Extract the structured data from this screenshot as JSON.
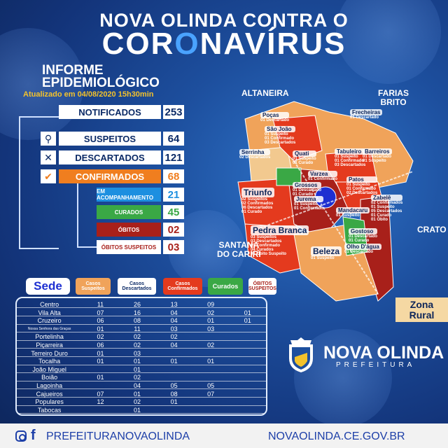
{
  "header": {
    "line1": "NOVA OLINDA CONTRA O",
    "line2_part1": "COR",
    "line2_o": "O",
    "line2_part2": "NAVÍRUS"
  },
  "informe": {
    "line1": "INFORME",
    "line2": "EPIDEMIOLÓGICO",
    "updated": "Atualizado em 04/08/2020 15h30min"
  },
  "stats": {
    "notificados": {
      "label": "NOTIFICADOS",
      "value": "253"
    },
    "suspeitos": {
      "label": "SUSPEITOS",
      "value": "64"
    },
    "descartados": {
      "label": "DESCARTADOS",
      "value": "121"
    },
    "confirmados": {
      "label": "CONFIRMADOS",
      "value": "68"
    },
    "acompanhamento": {
      "label": "EM ACOMPANHAMENTO",
      "value": "21"
    },
    "curados": {
      "label": "CURADOS",
      "value": "45"
    },
    "obitos": {
      "label": "ÓBITOS",
      "value": "02"
    },
    "obitos_suspeitos": {
      "label": "ÓBITOS SUSPEITOS",
      "value": "03"
    }
  },
  "colors": {
    "suspeitos": "#f0a35a",
    "descartados": "#ffffff",
    "confirmados": "#e43a1e",
    "curados": "#3aa845",
    "obitos": "#a8201a",
    "acompanhamento": "#1d8fe0",
    "confirmados_box": "#f07e1f"
  },
  "map": {
    "neighbors": {
      "altaneira": "ALTANEIRA",
      "farias_brito_1": "FARIAS",
      "farias_brito_2": "BRITO",
      "crato": "CRATO",
      "santana_1": "SANTANA",
      "santana_2": "DO CARIRI"
    },
    "zona_rural_1": "Zona",
    "zona_rural_2": "Rural",
    "localities": [
      {
        "name": "Poças",
        "notes": [
          "01 Descartado"
        ]
      },
      {
        "name": "São João",
        "notes": [
          "01 Suspeito",
          "01 Confirmado",
          "03 Descartados"
        ]
      },
      {
        "name": "Serrinha",
        "notes": [
          "02 Descartados"
        ]
      },
      {
        "name": "Quati",
        "notes": [
          "01 Suspeito",
          "01 Curado"
        ]
      },
      {
        "name": "Frecheiras",
        "notes": [
          "01 Descartado"
        ]
      },
      {
        "name": "Tabuleiro",
        "notes": [
          "01 Suspeito",
          "01 Confirmado",
          "03 Descartados"
        ]
      },
      {
        "name": "Barreiros",
        "notes": [
          "01 Descartado",
          "01 Suspeito"
        ]
      },
      {
        "name": "Grossos",
        "notes": [
          "01 Descartado",
          "01 Curado"
        ]
      },
      {
        "name": "Varzea",
        "notes": [
          "01 Confirmado"
        ]
      },
      {
        "name": "Patos",
        "notes": [
          "01 Suspeito",
          "01 Confirmado",
          "02 Descartados"
        ]
      },
      {
        "name": "Triunfo",
        "notes": [
          "02 Suspeitos",
          "02 Confirmados",
          "06 Descartados",
          "01 Curado"
        ]
      },
      {
        "name": "Jurema",
        "notes": [
          "01 Suspeito",
          "01 Confirmado"
        ]
      },
      {
        "name": "Zabelê",
        "notes": [
          "02 Confirmados",
          "01 Suspeito",
          "05 Descartados",
          "01 Curado",
          "01 Óbito"
        ]
      },
      {
        "name": "Mandacaru",
        "notes": [
          "01 Suspeito"
        ]
      },
      {
        "name": "Pedra Branca",
        "notes": [
          "03 Suspeitos",
          "03 Descartados",
          "09 Confirmado",
          "04 Curados",
          "01 Óbito Suspeito"
        ]
      },
      {
        "name": "Gostoso",
        "notes": [
          "01 Descartado",
          "01 Curado"
        ]
      },
      {
        "name": "Olho D'água",
        "notes": [
          "01 Descartado"
        ]
      },
      {
        "name": "Beleza",
        "notes": [
          "01 Suspeito"
        ]
      }
    ]
  },
  "legend": {
    "sede": "Sede",
    "suspeitos_1": "Casos",
    "suspeitos_2": "Suspeitos",
    "descartados_1": "Casos",
    "descartados_2": "Descartados",
    "confirmados_1": "Casos",
    "confirmados_2": "Confirmados",
    "curados": "Curados",
    "obitos_1": "ÓBITOS",
    "obitos_2": "SUSPEITOS"
  },
  "table": {
    "rows": [
      {
        "name": "Centro",
        "suspeitos": "11",
        "descartados": "26",
        "confirmados": "13",
        "curados": "09",
        "obitos": ""
      },
      {
        "name": "Vila Alta",
        "suspeitos": "07",
        "descartados": "16",
        "confirmados": "04",
        "curados": "02",
        "obitos": "01"
      },
      {
        "name": "Cruzeiro",
        "suspeitos": "06",
        "descartados": "08",
        "confirmados": "04",
        "curados": "01",
        "obitos": "01"
      },
      {
        "name": "Nossa Senhora das Graças",
        "suspeitos": "01",
        "descartados": "11",
        "confirmados": "03",
        "curados": "03",
        "obitos": ""
      },
      {
        "name": "Portelinha",
        "suspeitos": "02",
        "descartados": "02",
        "confirmados": "02",
        "curados": "",
        "obitos": ""
      },
      {
        "name": "Piçarreira",
        "suspeitos": "06",
        "descartados": "02",
        "confirmados": "04",
        "curados": "02",
        "obitos": ""
      },
      {
        "name": "Terreiro Duro",
        "suspeitos": "01",
        "descartados": "03",
        "confirmados": "",
        "curados": "",
        "obitos": ""
      },
      {
        "name": "Tocalha",
        "suspeitos": "01",
        "descartados": "01",
        "confirmados": "01",
        "curados": "01",
        "obitos": ""
      },
      {
        "name": "João Miguel",
        "suspeitos": "",
        "descartados": "01",
        "confirmados": "",
        "curados": "",
        "obitos": ""
      },
      {
        "name": "Boião",
        "suspeitos": "01",
        "descartados": "02",
        "confirmados": "",
        "curados": "",
        "obitos": ""
      },
      {
        "name": "Lagoinha",
        "suspeitos": "",
        "descartados": "04",
        "confirmados": "05",
        "curados": "05",
        "obitos": ""
      },
      {
        "name": "Cajueiros",
        "suspeitos": "07",
        "descartados": "01",
        "confirmados": "08",
        "curados": "07",
        "obitos": ""
      },
      {
        "name": "Populares",
        "suspeitos": "12",
        "descartados": "02",
        "confirmados": "01",
        "curados": "",
        "obitos": ""
      },
      {
        "name": "Tabocas",
        "suspeitos": "",
        "descartados": "01",
        "confirmados": "",
        "curados": "",
        "obitos": ""
      }
    ]
  },
  "brand": {
    "name": "NOVA OLINDA",
    "sub": "PREFEITURA"
  },
  "footer": {
    "social": "PREFEITURANOVAOLINDA",
    "site": "NOVAOLINDA.CE.GOV.BR",
    "icons": [
      "instagram-icon",
      "facebook-icon"
    ]
  }
}
